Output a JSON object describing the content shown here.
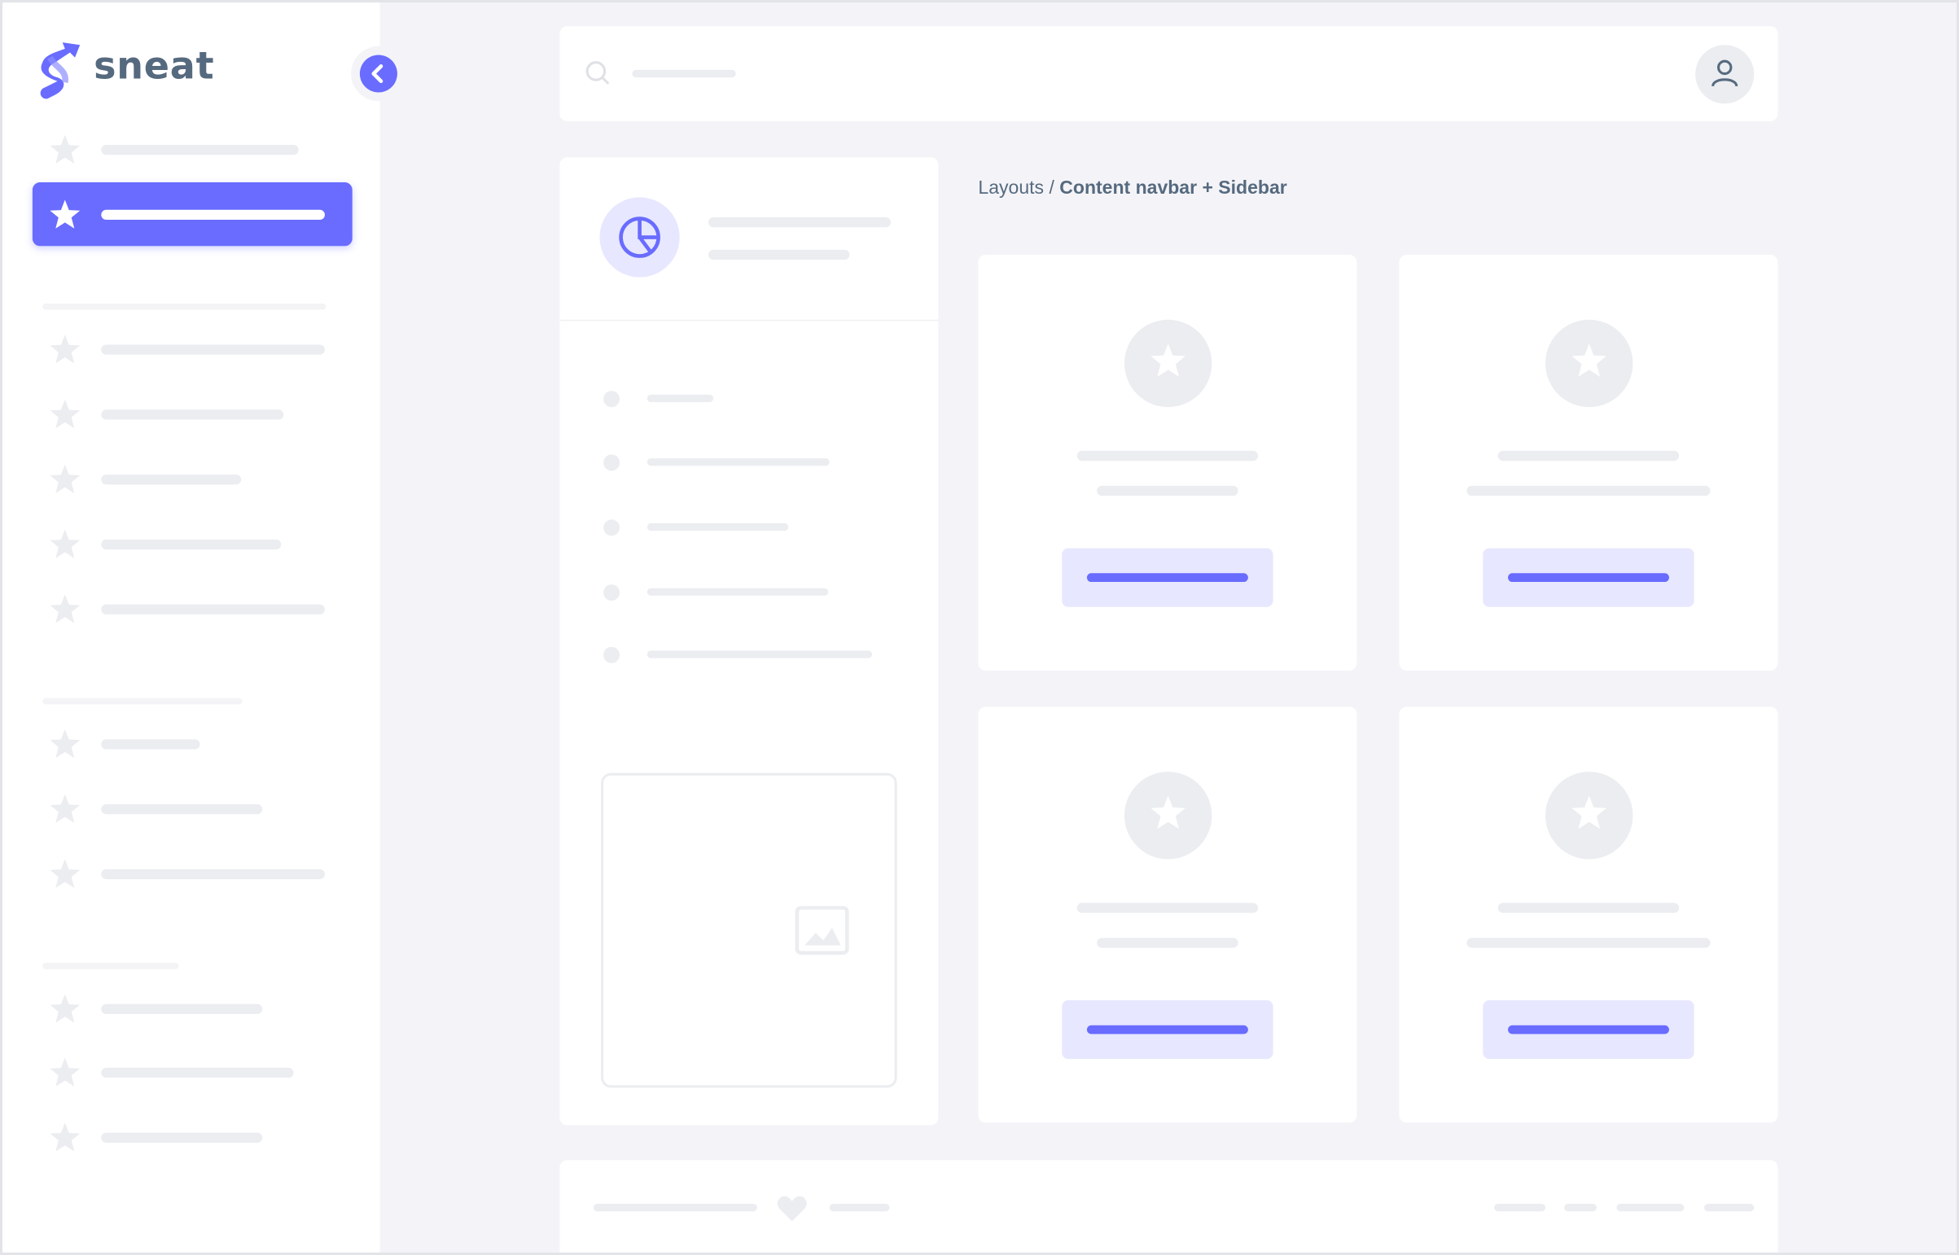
{
  "brand": {
    "name": "sneat",
    "accent": "#696cff",
    "accent_light": "#e7e7ff",
    "placeholder": "#ebedf0"
  },
  "sidebar": {
    "toggle_icon": "chevron-left-icon",
    "item_icon": "star-icon",
    "active_index": 1
  },
  "navbar": {
    "search_icon": "search-icon",
    "avatar_icon": "user-icon"
  },
  "breadcrumb": {
    "parent": "Layouts",
    "separator": " / ",
    "current": "Content navbar + Sidebar"
  },
  "left_panel": {
    "header_icon": "pie-chart-icon",
    "image_icon": "image-icon"
  },
  "footer": {
    "icon": "heart-icon"
  }
}
